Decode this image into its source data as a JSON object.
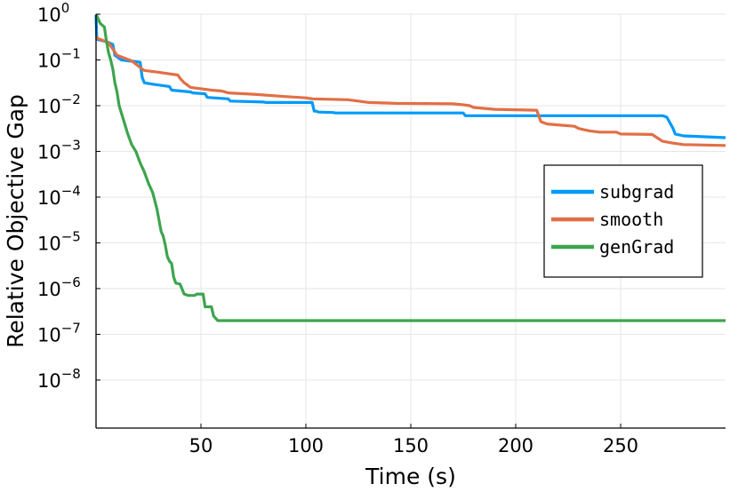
{
  "chart_data": {
    "type": "line",
    "xlabel": "Time (s)",
    "ylabel": "Relative Objective Gap",
    "xlim": [
      0,
      300
    ],
    "ylim_log10": [
      -9.05,
      0
    ],
    "yscale": "log",
    "grid": true,
    "legend_position": "right",
    "x_ticks": [
      50,
      100,
      150,
      200,
      250
    ],
    "y_ticks": [
      {
        "base": "10",
        "exp": "0",
        "value": 0
      },
      {
        "base": "10",
        "exp": "−1",
        "value": -1
      },
      {
        "base": "10",
        "exp": "−2",
        "value": -2
      },
      {
        "base": "10",
        "exp": "−3",
        "value": -3
      },
      {
        "base": "10",
        "exp": "−4",
        "value": -4
      },
      {
        "base": "10",
        "exp": "−5",
        "value": -5
      },
      {
        "base": "10",
        "exp": "−6",
        "value": -6
      },
      {
        "base": "10",
        "exp": "−7",
        "value": -7
      },
      {
        "base": "10",
        "exp": "−8",
        "value": -8
      }
    ],
    "series": [
      {
        "name": "subgrad",
        "color": "#009AFA",
        "points": [
          [
            0,
            -0.03
          ],
          [
            0.4,
            -0.55
          ],
          [
            5,
            -0.6
          ],
          [
            8,
            -0.66
          ],
          [
            9,
            -0.9
          ],
          [
            10,
            -0.93
          ],
          [
            12,
            -1.0
          ],
          [
            21,
            -1.05
          ],
          [
            22,
            -1.38
          ],
          [
            23,
            -1.5
          ],
          [
            27,
            -1.53
          ],
          [
            35,
            -1.58
          ],
          [
            36,
            -1.66
          ],
          [
            45,
            -1.7
          ],
          [
            46,
            -1.72
          ],
          [
            52,
            -1.74
          ],
          [
            53,
            -1.82
          ],
          [
            63,
            -1.85
          ],
          [
            64,
            -1.9
          ],
          [
            80,
            -1.92
          ],
          [
            81,
            -1.93
          ],
          [
            103,
            -1.93
          ],
          [
            104,
            -2.12
          ],
          [
            105,
            -2.12
          ],
          [
            106,
            -2.14
          ],
          [
            113,
            -2.15
          ],
          [
            114,
            -2.16
          ],
          [
            175,
            -2.16
          ],
          [
            176,
            -2.22
          ],
          [
            270,
            -2.22
          ],
          [
            272,
            -2.25
          ],
          [
            275,
            -2.5
          ],
          [
            276,
            -2.62
          ],
          [
            280,
            -2.66
          ],
          [
            290,
            -2.68
          ],
          [
            300,
            -2.7
          ]
        ]
      },
      {
        "name": "smooth",
        "color": "#E26F46",
        "points": [
          [
            0,
            -0.5
          ],
          [
            0.5,
            -0.52
          ],
          [
            3,
            -0.57
          ],
          [
            5,
            -0.6
          ],
          [
            6,
            -0.63
          ],
          [
            10,
            -0.9
          ],
          [
            17,
            -1.02
          ],
          [
            22,
            -1.2
          ],
          [
            23,
            -1.23
          ],
          [
            30,
            -1.27
          ],
          [
            39,
            -1.33
          ],
          [
            40,
            -1.4
          ],
          [
            42,
            -1.5
          ],
          [
            43,
            -1.53
          ],
          [
            45,
            -1.6
          ],
          [
            50,
            -1.63
          ],
          [
            55,
            -1.66
          ],
          [
            60,
            -1.68
          ],
          [
            63,
            -1.72
          ],
          [
            75,
            -1.75
          ],
          [
            90,
            -1.8
          ],
          [
            100,
            -1.83
          ],
          [
            103,
            -1.85
          ],
          [
            120,
            -1.87
          ],
          [
            125,
            -1.9
          ],
          [
            130,
            -1.93
          ],
          [
            143,
            -1.95
          ],
          [
            170,
            -1.96
          ],
          [
            175,
            -1.98
          ],
          [
            178,
            -2.0
          ],
          [
            180,
            -2.04
          ],
          [
            190,
            -2.08
          ],
          [
            210,
            -2.1
          ],
          [
            212,
            -2.35
          ],
          [
            215,
            -2.4
          ],
          [
            228,
            -2.45
          ],
          [
            230,
            -2.5
          ],
          [
            235,
            -2.55
          ],
          [
            240,
            -2.58
          ],
          [
            248,
            -2.58
          ],
          [
            250,
            -2.62
          ],
          [
            265,
            -2.63
          ],
          [
            270,
            -2.78
          ],
          [
            275,
            -2.82
          ],
          [
            280,
            -2.85
          ],
          [
            300,
            -2.87
          ]
        ]
      },
      {
        "name": "genGrad",
        "color": "#3EA44E",
        "points": [
          [
            0,
            0
          ],
          [
            0.5,
            -0.05
          ],
          [
            2,
            -0.2
          ],
          [
            4,
            -0.28
          ],
          [
            5,
            -0.6
          ],
          [
            6,
            -0.85
          ],
          [
            7,
            -1.0
          ],
          [
            8,
            -1.2
          ],
          [
            9,
            -1.5
          ],
          [
            10,
            -1.7
          ],
          [
            11,
            -2.0
          ],
          [
            13,
            -2.3
          ],
          [
            15,
            -2.6
          ],
          [
            17,
            -2.85
          ],
          [
            19,
            -3.0
          ],
          [
            21,
            -3.25
          ],
          [
            23,
            -3.45
          ],
          [
            25,
            -3.7
          ],
          [
            27,
            -3.9
          ],
          [
            29,
            -4.25
          ],
          [
            30,
            -4.5
          ],
          [
            31,
            -4.75
          ],
          [
            32,
            -4.85
          ],
          [
            33,
            -5.05
          ],
          [
            34,
            -5.3
          ],
          [
            35,
            -5.4
          ],
          [
            36,
            -5.45
          ],
          [
            37,
            -5.75
          ],
          [
            38,
            -5.88
          ],
          [
            40,
            -5.9
          ],
          [
            42,
            -6.12
          ],
          [
            44,
            -6.15
          ],
          [
            47,
            -6.15
          ],
          [
            48,
            -6.12
          ],
          [
            51,
            -6.12
          ],
          [
            52,
            -6.4
          ],
          [
            55,
            -6.4
          ],
          [
            56,
            -6.6
          ],
          [
            58,
            -6.7
          ],
          [
            60,
            -6.7
          ],
          [
            300,
            -6.7
          ]
        ]
      }
    ]
  }
}
